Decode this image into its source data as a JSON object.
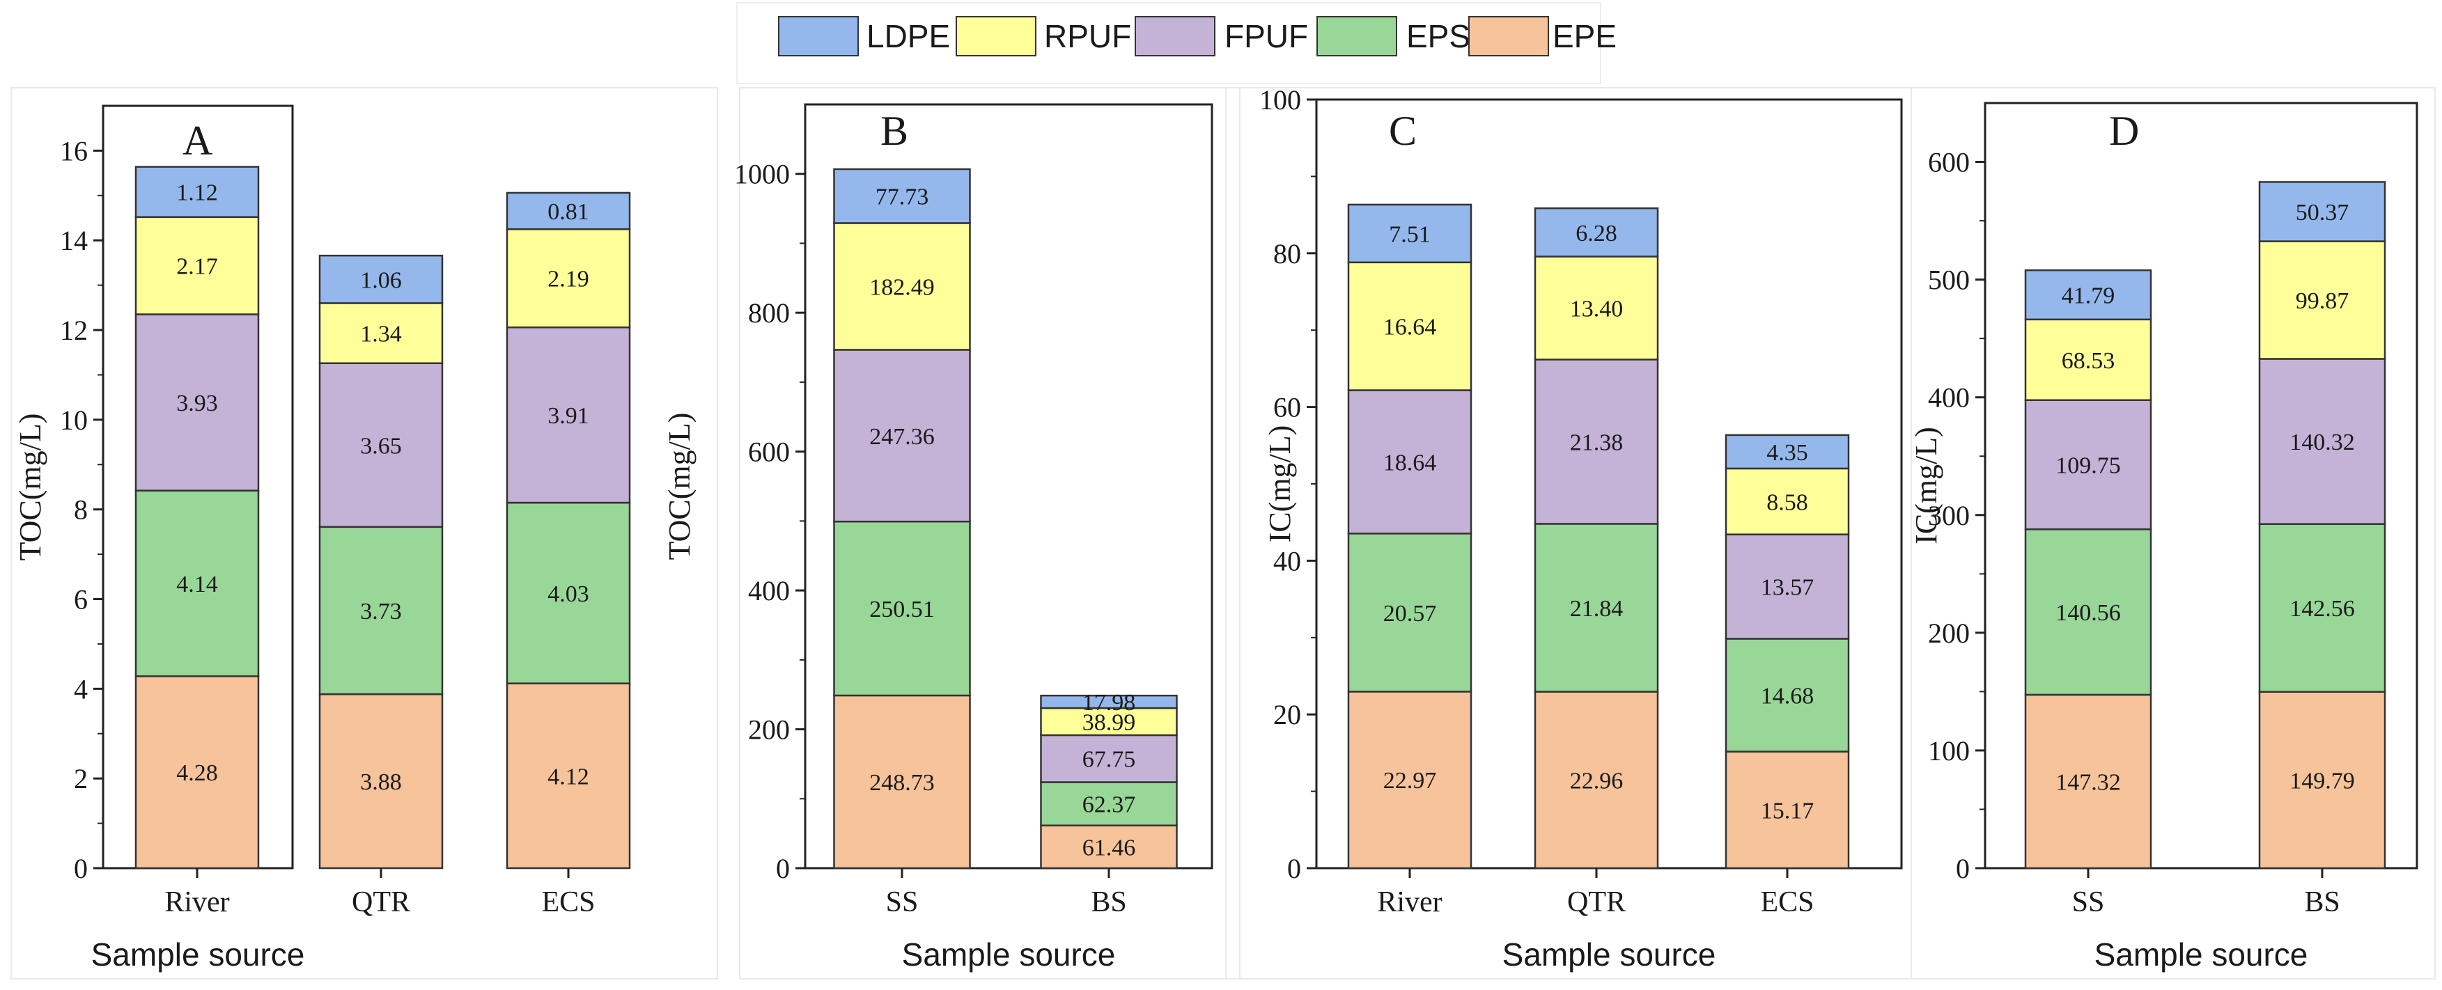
{
  "colors": {
    "LDPE": "#94b8ec",
    "RPUF": "#ffff99",
    "FPUF": "#c4b3d7",
    "EPS": "#98d797",
    "EPE": "#f7c39a",
    "edge": "#333333",
    "axis": "#222222"
  },
  "legend": {
    "items": [
      "LDPE",
      "RPUF",
      "FPUF",
      "EPS",
      "EPE"
    ]
  },
  "chart_data": [
    {
      "type": "bar",
      "stacked": true,
      "panel": "A",
      "title": "A",
      "xlabel": "Sample source",
      "ylabel": "TOC(mg/L)",
      "ylim": [
        0,
        17
      ],
      "yticks": [
        0,
        2,
        4,
        6,
        8,
        10,
        12,
        14,
        16
      ],
      "categories": [
        "River",
        "QTR",
        "ECS"
      ],
      "series": [
        {
          "name": "EPE",
          "values": [
            4.28,
            3.88,
            4.12
          ],
          "labels": [
            "4.28",
            "3.88",
            "4.12"
          ]
        },
        {
          "name": "EPS",
          "values": [
            4.14,
            3.73,
            4.03
          ],
          "labels": [
            "4.14",
            "3.73",
            "4.03"
          ]
        },
        {
          "name": "FPUF",
          "values": [
            3.93,
            3.65,
            3.91
          ],
          "labels": [
            "3.93",
            "3.65",
            "3.91"
          ]
        },
        {
          "name": "RPUF",
          "values": [
            2.17,
            1.34,
            2.19
          ],
          "labels": [
            "2.17",
            "1.34",
            "2.19"
          ]
        },
        {
          "name": "LDPE",
          "values": [
            1.12,
            1.06,
            0.81
          ],
          "labels": [
            "1.12",
            "1.06",
            "0.81"
          ]
        }
      ]
    },
    {
      "type": "bar",
      "stacked": true,
      "panel": "B",
      "title": "B",
      "xlabel": "Sample source",
      "ylabel": "TOC(mg/L)",
      "ylim": [
        0,
        1100
      ],
      "yticks": [
        0,
        200,
        400,
        600,
        800,
        1000
      ],
      "categories": [
        "SS",
        "BS"
      ],
      "series": [
        {
          "name": "EPE",
          "values": [
            248.73,
            61.46
          ],
          "labels": [
            "248.73",
            "61.46"
          ]
        },
        {
          "name": "EPS",
          "values": [
            250.51,
            62.37
          ],
          "labels": [
            "250.51",
            "62.37"
          ]
        },
        {
          "name": "FPUF",
          "values": [
            247.36,
            67.75
          ],
          "labels": [
            "247.36",
            "67.75"
          ]
        },
        {
          "name": "RPUF",
          "values": [
            182.49,
            38.99
          ],
          "labels": [
            "182.49",
            "38.99"
          ]
        },
        {
          "name": "LDPE",
          "values": [
            77.73,
            17.98
          ],
          "labels": [
            "77.73",
            "17.98"
          ]
        }
      ]
    },
    {
      "type": "bar",
      "stacked": true,
      "panel": "C",
      "title": "C",
      "xlabel": "Sample source",
      "ylabel": "IC(mg/L)",
      "ylim": [
        0,
        100
      ],
      "yticks": [
        0,
        20,
        40,
        60,
        80,
        100
      ],
      "categories": [
        "River",
        "QTR",
        "ECS"
      ],
      "series": [
        {
          "name": "EPE",
          "values": [
            22.97,
            22.96,
            15.17
          ],
          "labels": [
            "22.97",
            "22.96",
            "15.17"
          ]
        },
        {
          "name": "EPS",
          "values": [
            20.57,
            21.84,
            14.68
          ],
          "labels": [
            "20.57",
            "21.84",
            "14.68"
          ]
        },
        {
          "name": "FPUF",
          "values": [
            18.64,
            21.38,
            13.57
          ],
          "labels": [
            "18.64",
            "21.38",
            "13.57"
          ]
        },
        {
          "name": "RPUF",
          "values": [
            16.64,
            13.4,
            8.58
          ],
          "labels": [
            "16.64",
            "13.40",
            "8.58"
          ]
        },
        {
          "name": "LDPE",
          "values": [
            7.51,
            6.28,
            4.35
          ],
          "labels": [
            "7.51",
            "6.28",
            "4.35"
          ]
        }
      ]
    },
    {
      "type": "bar",
      "stacked": true,
      "panel": "D",
      "title": "D",
      "xlabel": "Sample source",
      "ylabel": "IC(mg/L)",
      "ylim": [
        0,
        650
      ],
      "yticks": [
        0,
        100,
        200,
        300,
        400,
        500,
        600
      ],
      "categories": [
        "SS",
        "BS"
      ],
      "series": [
        {
          "name": "EPE",
          "values": [
            147.32,
            149.79
          ],
          "labels": [
            "147.32",
            "149.79"
          ]
        },
        {
          "name": "EPS",
          "values": [
            140.56,
            142.56
          ],
          "labels": [
            "140.56",
            "142.56"
          ]
        },
        {
          "name": "FPUF",
          "values": [
            109.75,
            140.32
          ],
          "labels": [
            "109.75",
            "140.32"
          ]
        },
        {
          "name": "RPUF",
          "values": [
            68.53,
            99.87
          ],
          "labels": [
            "68.53",
            "99.87"
          ]
        },
        {
          "name": "LDPE",
          "values": [
            41.79,
            50.37
          ],
          "labels": [
            "41.79",
            "50.37"
          ]
        }
      ]
    }
  ]
}
